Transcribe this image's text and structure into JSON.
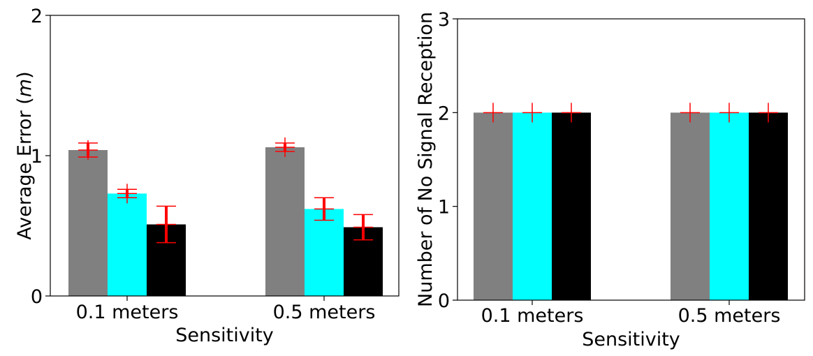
{
  "colors": {
    "series": [
      "#808080",
      "#00ffff",
      "#000000"
    ],
    "error": "#ff0000"
  },
  "chart_data": [
    {
      "type": "bar",
      "categories": [
        "0.1 meters",
        "0.5 meters"
      ],
      "series": [
        {
          "values": [
            1.04,
            1.06
          ],
          "err_low": [
            0.05,
            0.03
          ],
          "err_high": [
            0.05,
            0.03
          ]
        },
        {
          "values": [
            0.73,
            0.62
          ],
          "err_low": [
            0.03,
            0.08
          ],
          "err_high": [
            0.03,
            0.08
          ]
        },
        {
          "values": [
            0.51,
            0.49
          ],
          "err_low": [
            0.13,
            0.09
          ],
          "err_high": [
            0.13,
            0.09
          ]
        }
      ],
      "xlabel": "Sensitivity",
      "ylabel": "Average Error ($m$)",
      "ylabel_parts": {
        "prefix": "Average Error (",
        "unit": "m",
        "suffix": ")"
      },
      "ylim": [
        0,
        2
      ],
      "yticks": [
        "0",
        "1",
        "2"
      ],
      "grid": false,
      "error_markers": "plus"
    },
    {
      "type": "bar",
      "categories": [
        "0.1 meters",
        "0.5 meters"
      ],
      "series": [
        {
          "values": [
            2,
            2
          ],
          "err_low": [
            0,
            0
          ],
          "err_high": [
            0,
            0
          ]
        },
        {
          "values": [
            2,
            2
          ],
          "err_low": [
            0,
            0
          ],
          "err_high": [
            0,
            0
          ]
        },
        {
          "values": [
            2,
            2
          ],
          "err_low": [
            0,
            0
          ],
          "err_high": [
            0,
            0
          ]
        }
      ],
      "xlabel": "Sensitivity",
      "ylabel": "Number of No Signal Reception",
      "ylim": [
        0,
        3
      ],
      "yticks": [
        "0",
        "1",
        "2",
        "3"
      ],
      "grid": false,
      "error_markers": "plus"
    }
  ]
}
